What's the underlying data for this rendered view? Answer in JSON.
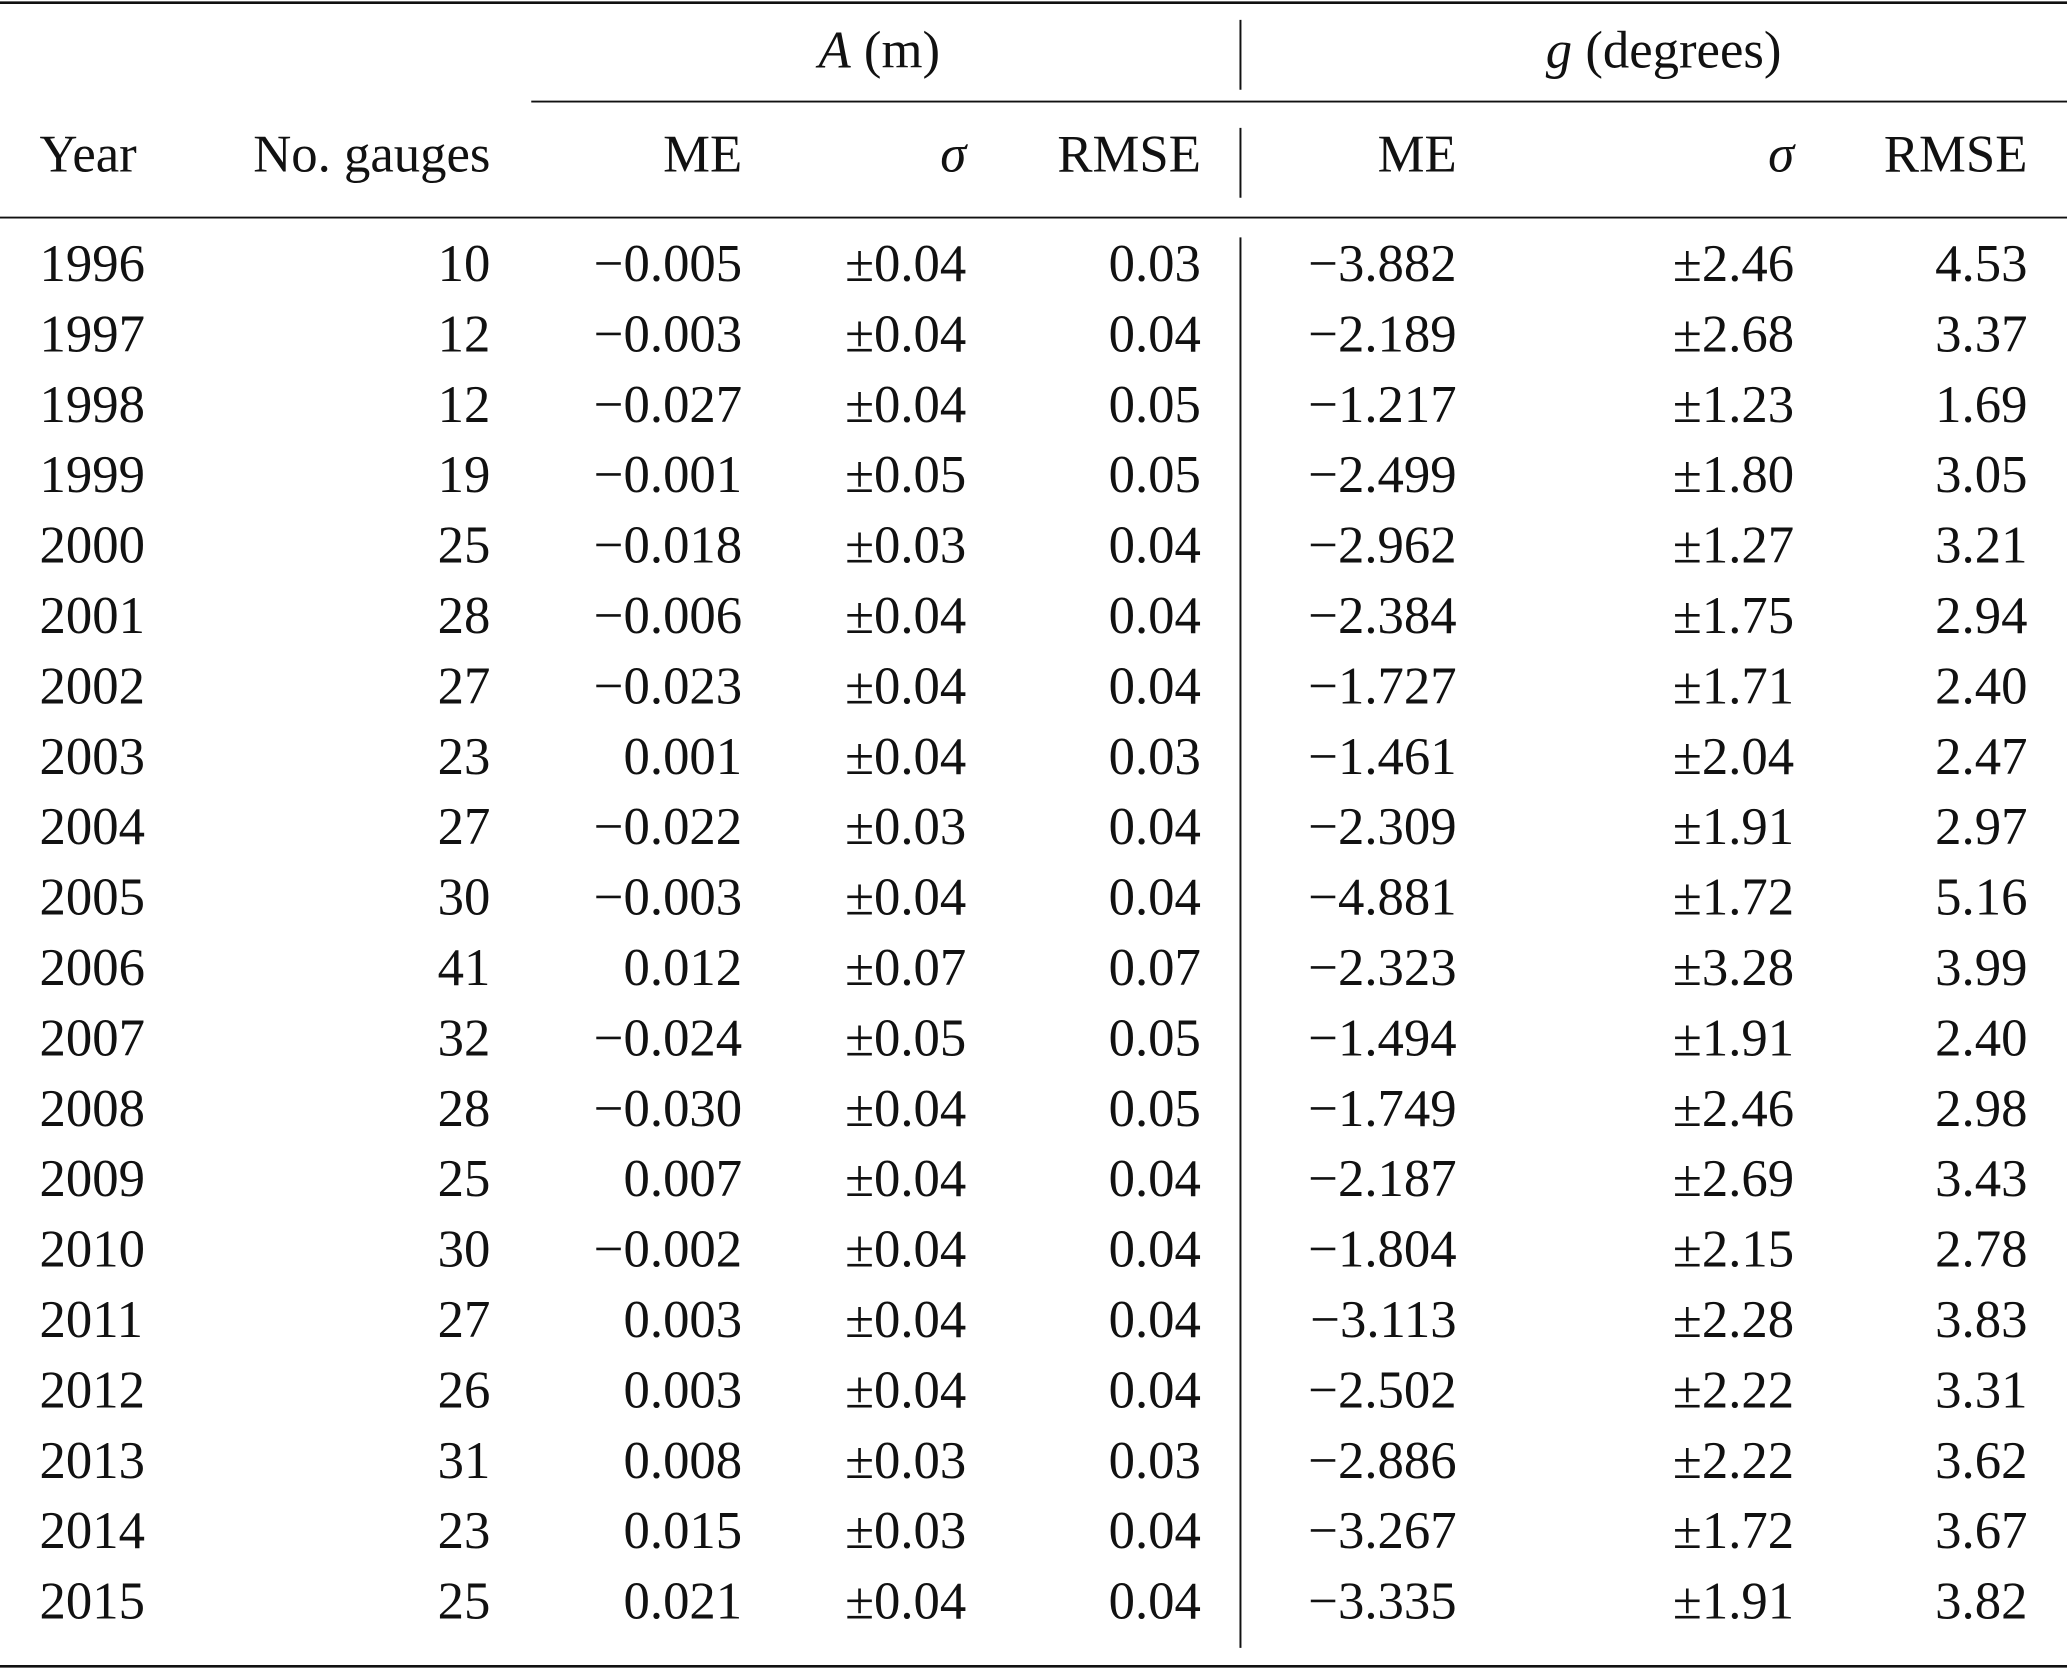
{
  "table": {
    "groups": [
      {
        "symbol": "A",
        "unit": "(m)"
      },
      {
        "symbol": "g",
        "unit": "(degrees)"
      }
    ],
    "columns": [
      "Year",
      "No. gauges",
      "ME",
      "σ",
      "RMSE",
      "ME",
      "σ",
      "RMSE"
    ],
    "rows": [
      [
        "1996",
        "10",
        "−0.005",
        "±0.04",
        "0.03",
        "−3.882",
        "±2.46",
        "4.53"
      ],
      [
        "1997",
        "12",
        "−0.003",
        "±0.04",
        "0.04",
        "−2.189",
        "±2.68",
        "3.37"
      ],
      [
        "1998",
        "12",
        "−0.027",
        "±0.04",
        "0.05",
        "−1.217",
        "±1.23",
        "1.69"
      ],
      [
        "1999",
        "19",
        "−0.001",
        "±0.05",
        "0.05",
        "−2.499",
        "±1.80",
        "3.05"
      ],
      [
        "2000",
        "25",
        "−0.018",
        "±0.03",
        "0.04",
        "−2.962",
        "±1.27",
        "3.21"
      ],
      [
        "2001",
        "28",
        "−0.006",
        "±0.04",
        "0.04",
        "−2.384",
        "±1.75",
        "2.94"
      ],
      [
        "2002",
        "27",
        "−0.023",
        "±0.04",
        "0.04",
        "−1.727",
        "±1.71",
        "2.40"
      ],
      [
        "2003",
        "23",
        "0.001",
        "±0.04",
        "0.03",
        "−1.461",
        "±2.04",
        "2.47"
      ],
      [
        "2004",
        "27",
        "−0.022",
        "±0.03",
        "0.04",
        "−2.309",
        "±1.91",
        "2.97"
      ],
      [
        "2005",
        "30",
        "−0.003",
        "±0.04",
        "0.04",
        "−4.881",
        "±1.72",
        "5.16"
      ],
      [
        "2006",
        "41",
        "0.012",
        "±0.07",
        "0.07",
        "−2.323",
        "±3.28",
        "3.99"
      ],
      [
        "2007",
        "32",
        "−0.024",
        "±0.05",
        "0.05",
        "−1.494",
        "±1.91",
        "2.40"
      ],
      [
        "2008",
        "28",
        "−0.030",
        "±0.04",
        "0.05",
        "−1.749",
        "±2.46",
        "2.98"
      ],
      [
        "2009",
        "25",
        "0.007",
        "±0.04",
        "0.04",
        "−2.187",
        "±2.69",
        "3.43"
      ],
      [
        "2010",
        "30",
        "−0.002",
        "±0.04",
        "0.04",
        "−1.804",
        "±2.15",
        "2.78"
      ],
      [
        "2011",
        "27",
        "0.003",
        "±0.04",
        "0.04",
        "−3.113",
        "±2.28",
        "3.83"
      ],
      [
        "2012",
        "26",
        "0.003",
        "±0.04",
        "0.04",
        "−2.502",
        "±2.22",
        "3.31"
      ],
      [
        "2013",
        "31",
        "0.008",
        "±0.03",
        "0.03",
        "−2.886",
        "±2.22",
        "3.62"
      ],
      [
        "2014",
        "23",
        "0.015",
        "±0.03",
        "0.04",
        "−3.267",
        "±1.72",
        "3.67"
      ],
      [
        "2015",
        "25",
        "0.021",
        "±0.04",
        "0.04",
        "−3.335",
        "±1.91",
        "3.82"
      ]
    ]
  }
}
